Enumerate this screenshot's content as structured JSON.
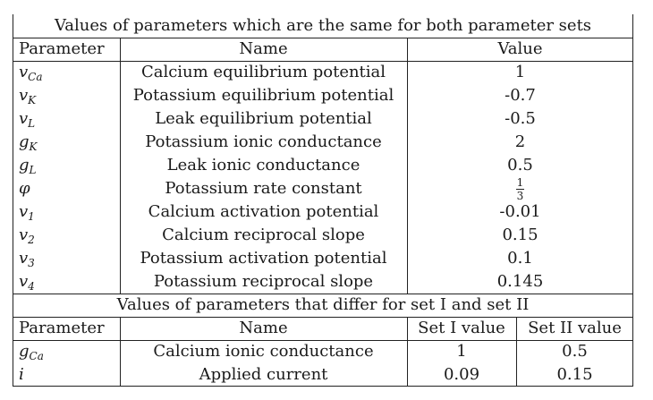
{
  "section1": {
    "title": "Values of parameters which are the same for both parameter sets",
    "headers": [
      "Parameter",
      "Name",
      "Value"
    ],
    "rows": [
      {
        "sym": "v",
        "sub": "Ca",
        "name": "Calcium equilibrium potential",
        "value": "1"
      },
      {
        "sym": "v",
        "sub": "K",
        "name": "Potassium equilibrium potential",
        "value": "-0.7"
      },
      {
        "sym": "v",
        "sub": "L",
        "name": "Leak equilibrium potential",
        "value": "-0.5"
      },
      {
        "sym": "g",
        "sub": "K",
        "name": "Potassium ionic conductance",
        "value": "2"
      },
      {
        "sym": "g",
        "sub": "L",
        "name": "Leak ionic conductance",
        "value": "0.5"
      },
      {
        "sym": "φ",
        "sub": "",
        "name": "Potassium rate constant",
        "value": "",
        "frac_num": "1",
        "frac_den": "3"
      },
      {
        "sym": "v",
        "sub": "1",
        "name": "Calcium activation potential",
        "value": "-0.01"
      },
      {
        "sym": "v",
        "sub": "2",
        "name": "Calcium reciprocal slope",
        "value": "0.15"
      },
      {
        "sym": "v",
        "sub": "3",
        "name": "Potassium activation potential",
        "value": "0.1"
      },
      {
        "sym": "v",
        "sub": "4",
        "name": "Potassium reciprocal slope",
        "value": "0.145"
      }
    ]
  },
  "section2": {
    "title": "Values of parameters that differ for set I and set II",
    "headers": [
      "Parameter",
      "Name",
      "Set I value",
      "Set II value"
    ],
    "rows": [
      {
        "sym": "g",
        "sub": "Ca",
        "name": "Calcium ionic conductance",
        "set1": "1",
        "set2": "0.5"
      },
      {
        "sym": "i",
        "sub": "",
        "name": "Applied current",
        "set1": "0.09",
        "set2": "0.15"
      }
    ]
  }
}
